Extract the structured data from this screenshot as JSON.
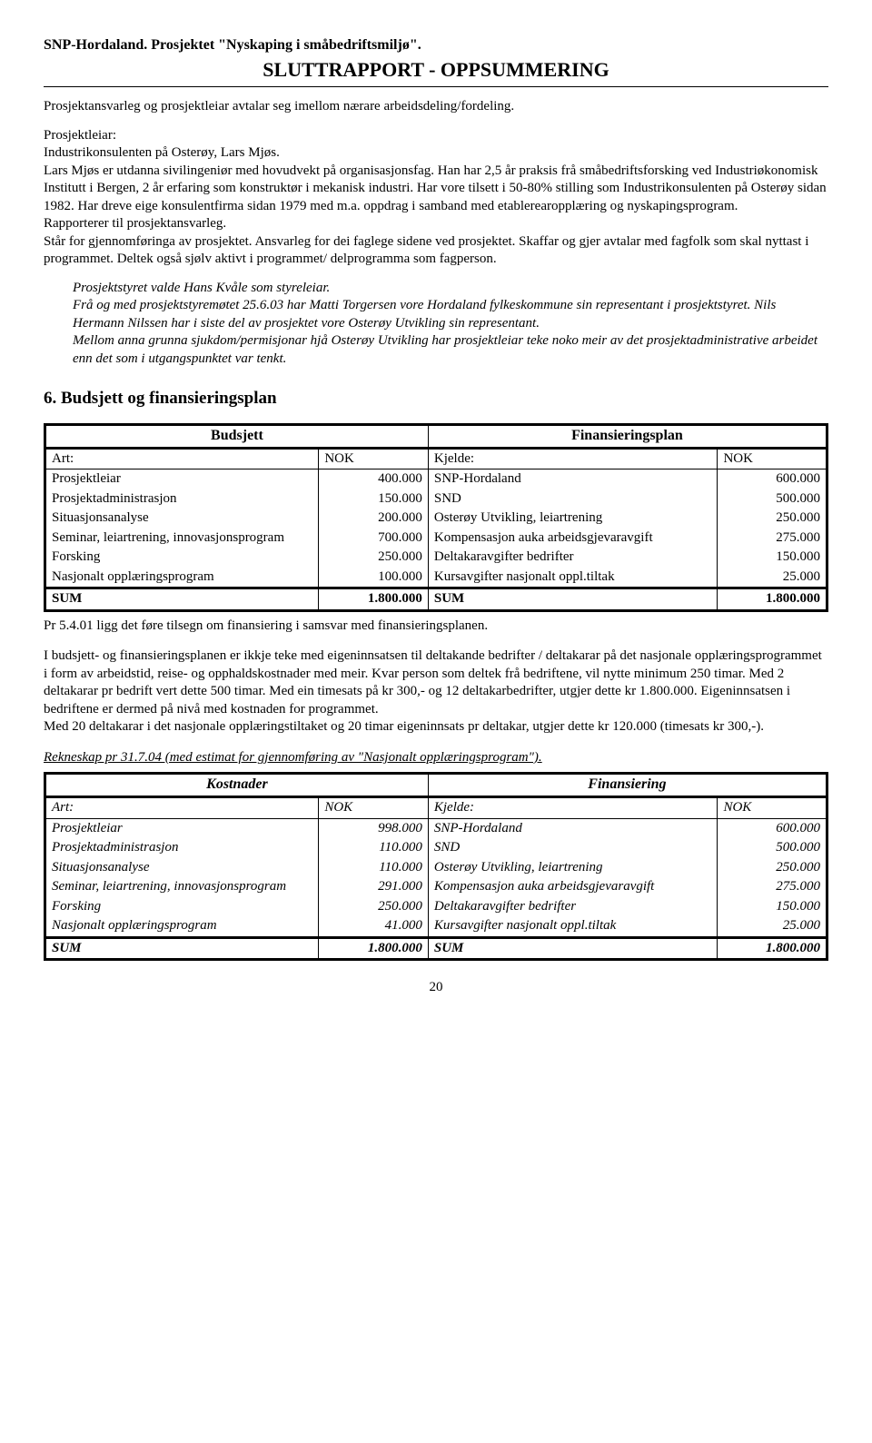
{
  "header": {
    "line1": "SNP-Hordaland. Prosjektet \"Nyskaping i småbedriftsmiljø\".",
    "line2": "SLUTTRAPPORT - OPPSUMMERING"
  },
  "intro": {
    "p1": "Prosjektansvarleg og prosjektleiar avtalar seg imellom nærare arbeidsdeling/fordeling.",
    "p2a": "Prosjektleiar:",
    "p2b": "Industrikonsulenten på Osterøy, Lars Mjøs.",
    "p2c": "Lars Mjøs er utdanna sivilingeniør med hovudvekt på organisasjonsfag. Han har 2,5 år praksis frå småbedriftsforsking ved Industriøkonomisk Institutt i Bergen, 2 år erfaring som konstruktør i mekanisk industri. Har vore tilsett i 50-80% stilling som Industrikonsulenten på Osterøy sidan 1982. Har dreve eige konsulentfirma sidan 1979 med m.a. oppdrag i samband med etablerearopplæring og nyskapingsprogram.",
    "p2d": "Rapporterer til prosjektansvarleg.",
    "p2e": "Står for gjennomføringa av prosjektet. Ansvarleg for dei faglege sidene ved prosjektet. Skaffar og gjer avtalar med fagfolk som skal nyttast i programmet. Deltek også sjølv aktivt i programmet/ delprogramma som fagperson."
  },
  "italic_block": {
    "p1": "Prosjektstyret valde Hans Kvåle som styreleiar.",
    "p2": "Frå og med prosjektstyremøtet 25.6.03 har Matti Torgersen vore Hordaland fylkeskommune sin representant i prosjektstyret. Nils Hermann Nilssen har i siste del av prosjektet vore Osterøy Utvikling sin representant.",
    "p3": "Mellom anna grunna sjukdom/permisjonar hjå Osterøy Utvikling har prosjektleiar teke noko meir av det prosjektadministrative arbeidet enn det som i utgangspunktet var tenkt."
  },
  "section6": {
    "title": "6.  Budsjett og finansieringsplan"
  },
  "table1": {
    "hdr_left": "Budsjett",
    "hdr_right": "Finansieringsplan",
    "sub_art": "Art:",
    "sub_nok": "NOK",
    "sub_kjelde": "Kjelde:",
    "sub_nok2": "NOK",
    "rows": [
      {
        "a": "Prosjektleiar",
        "b": "400.000",
        "c": "SNP-Hordaland",
        "d": "600.000"
      },
      {
        "a": "Prosjektadministrasjon",
        "b": "150.000",
        "c": "SND",
        "d": "500.000"
      },
      {
        "a": "Situasjonsanalyse",
        "b": "200.000",
        "c": "Osterøy Utvikling, leiartrening",
        "d": "250.000"
      },
      {
        "a": "Seminar, leiartrening, innovasjonsprogram",
        "b": "700.000",
        "c": "Kompensasjon auka arbeidsgjevaravgift",
        "d": "275.000"
      },
      {
        "a": "Forsking",
        "b": "250.000",
        "c": "Deltakaravgifter bedrifter",
        "d": "150.000"
      },
      {
        "a": "Nasjonalt opplæringsprogram",
        "b": "100.000",
        "c": "Kursavgifter nasjonalt oppl.tiltak",
        "d": "25.000"
      }
    ],
    "sum_a": "SUM",
    "sum_b": "1.800.000",
    "sum_c": "SUM",
    "sum_d": "1.800.000"
  },
  "after_t1": {
    "p1": "Pr 5.4.01 ligg det føre tilsegn om finansiering i samsvar med finansieringsplanen.",
    "p2": "I budsjett- og finansieringsplanen er ikkje teke med eigeninnsatsen til deltakande bedrifter / deltakarar på det nasjonale opplæringsprogrammet i form av arbeidstid, reise- og opphaldskostnader med meir. Kvar person som deltek frå bedriftene, vil nytte minimum 250 timar. Med 2 deltakarar pr bedrift vert dette 500 timar. Med ein timesats på kr 300,- og 12 deltakarbedrifter, utgjer dette kr 1.800.000. Eigeninnsatsen i bedriftene er dermed på nivå med kostnaden for programmet.",
    "p3": "Med 20 deltakarar i det nasjonale opplæringstiltaket og 20 timar eigeninnsats pr deltakar, utgjer dette kr 120.000 (timesats kr 300,-)."
  },
  "rekneskap_title": "Rekneskap pr 31.7.04 (med estimat for gjennomføring av \"Nasjonalt opplæringsprogram\").",
  "table2": {
    "hdr_left": "Kostnader",
    "hdr_right": "Finansiering",
    "sub_art": "Art:",
    "sub_nok": "NOK",
    "sub_kjelde": "Kjelde:",
    "sub_nok2": "NOK",
    "rows": [
      {
        "a": "Prosjektleiar",
        "b": "998.000",
        "c": "SNP-Hordaland",
        "d": "600.000"
      },
      {
        "a": "Prosjektadministrasjon",
        "b": "110.000",
        "c": "SND",
        "d": "500.000"
      },
      {
        "a": "Situasjonsanalyse",
        "b": "110.000",
        "c": "Osterøy Utvikling, leiartrening",
        "d": "250.000"
      },
      {
        "a": "Seminar, leiartrening, innovasjonsprogram",
        "b": "291.000",
        "c": "Kompensasjon auka arbeidsgjevaravgift",
        "d": "275.000"
      },
      {
        "a": "Forsking",
        "b": "250.000",
        "c": "Deltakaravgifter bedrifter",
        "d": "150.000"
      },
      {
        "a": "Nasjonalt opplæringsprogram",
        "b": "41.000",
        "c": "Kursavgifter nasjonalt oppl.tiltak",
        "d": "25.000"
      }
    ],
    "sum_a": "SUM",
    "sum_b": "1.800.000",
    "sum_c": "SUM",
    "sum_d": "1.800.000"
  },
  "page_number": "20"
}
